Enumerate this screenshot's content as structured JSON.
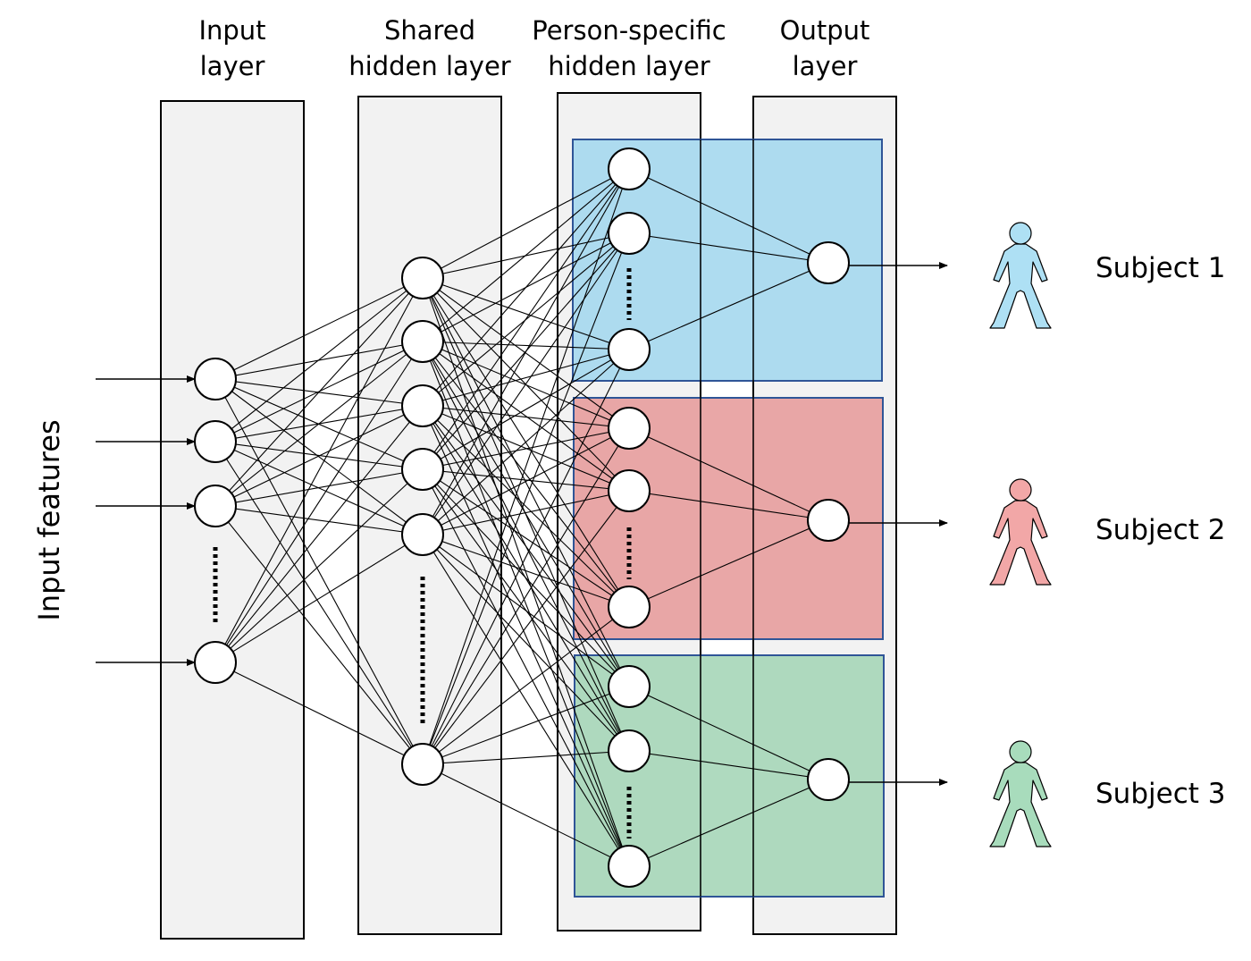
{
  "header": {
    "input_layer_line1": "Input",
    "input_layer_line2": "layer",
    "shared_layer_line1": "Shared",
    "shared_layer_line2": "hidden layer",
    "person_layer_line1": "Person-specific",
    "person_layer_line2": "hidden layer",
    "output_layer_line1": "Output",
    "output_layer_line2": "layer"
  },
  "side_label": "Input features",
  "subjects": [
    {
      "label": "Subject 1",
      "color": "#b3e3f5",
      "box_fill": "#a5d8ee",
      "figure_color": "#aee0f4"
    },
    {
      "label": "Subject 2",
      "color": "#f3b1b1",
      "box_fill": "#e79d9d",
      "figure_color": "#f2a7a7"
    },
    {
      "label": "Subject 3",
      "color": "#b4e4c7",
      "box_fill": "#a6d6b8",
      "figure_color": "#a8dcbc"
    }
  ],
  "colors": {
    "layer_panel": "#f2f2f2",
    "box_border": "#2f5597",
    "node_fill": "#ffffff",
    "line": "#000000"
  },
  "icons": [
    "arrow-icon",
    "person-icon"
  ]
}
